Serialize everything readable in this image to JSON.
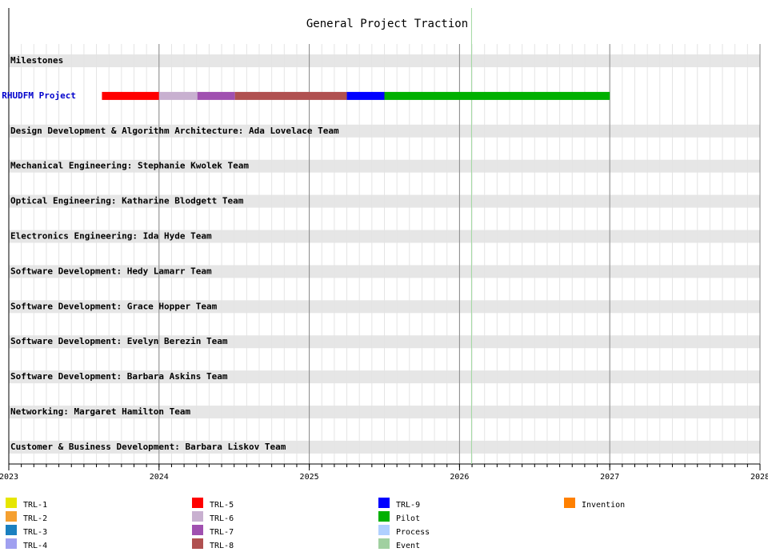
{
  "chart_data": {
    "type": "gantt",
    "title": "General Project Traction",
    "xlim": [
      2023,
      2028
    ],
    "xticks": [
      2023,
      2024,
      2025,
      2026,
      2027,
      2028
    ],
    "grid": true,
    "today": 2026.08,
    "today_color": "#a0d8a0",
    "rows": [
      {
        "label": "Milestones",
        "color": "#000000",
        "band": true,
        "tasks": []
      },
      {
        "label": "RHUDFM Project",
        "color": "#0000cc",
        "band": false,
        "tasks": [
          {
            "start": 2023.62,
            "end": 2024.0,
            "color": "#ff0000"
          },
          {
            "start": 2024.0,
            "end": 2024.255,
            "color": "#c8b0d0"
          },
          {
            "start": 2024.255,
            "end": 2024.505,
            "color": "#a050b0"
          },
          {
            "start": 2024.505,
            "end": 2025.25,
            "color": "#b05050"
          },
          {
            "start": 2025.25,
            "end": 2025.5,
            "color": "#0000ff"
          },
          {
            "start": 2025.5,
            "end": 2027.0,
            "color": "#00b000"
          }
        ]
      },
      {
        "label": "Design Development & Algorithm Architecture: Ada Lovelace Team",
        "color": "#000000",
        "band": true,
        "tasks": []
      },
      {
        "label": "Mechanical Engineering: Stephanie Kwolek Team",
        "color": "#000000",
        "band": true,
        "tasks": []
      },
      {
        "label": "Optical Engineering: Katharine Blodgett Team",
        "color": "#000000",
        "band": true,
        "tasks": []
      },
      {
        "label": "Electronics Engineering: Ida Hyde Team",
        "color": "#000000",
        "band": true,
        "tasks": []
      },
      {
        "label": "Software Development: Hedy Lamarr Team",
        "color": "#000000",
        "band": true,
        "tasks": []
      },
      {
        "label": "Software Development: Grace Hopper Team",
        "color": "#000000",
        "band": true,
        "tasks": []
      },
      {
        "label": "Software Development: Evelyn Berezin Team",
        "color": "#000000",
        "band": true,
        "tasks": []
      },
      {
        "label": "Software Development: Barbara Askins Team",
        "color": "#000000",
        "band": true,
        "tasks": []
      },
      {
        "label": "Networking: Margaret Hamilton Team",
        "color": "#000000",
        "band": true,
        "tasks": []
      },
      {
        "label": "Customer & Business Development: Barbara Liskov Team",
        "color": "#000000",
        "band": true,
        "tasks": []
      }
    ],
    "legend": [
      {
        "name": "TRL-1",
        "color": "#e6e600"
      },
      {
        "name": "TRL-2",
        "color": "#f5a030"
      },
      {
        "name": "TRL-3",
        "color": "#1a80c0"
      },
      {
        "name": "TRL-4",
        "color": "#a0a0f0"
      },
      {
        "name": "TRL-5",
        "color": "#ff0000"
      },
      {
        "name": "TRL-6",
        "color": "#c8b0d0"
      },
      {
        "name": "TRL-7",
        "color": "#a050b0"
      },
      {
        "name": "TRL-8",
        "color": "#b05050"
      },
      {
        "name": "TRL-9",
        "color": "#0000ff"
      },
      {
        "name": "Pilot",
        "color": "#00b000"
      },
      {
        "name": "Process",
        "color": "#b0d0ff"
      },
      {
        "name": "Event",
        "color": "#a0d0a0"
      },
      {
        "name": "Invention",
        "color": "#ff8000"
      }
    ]
  }
}
